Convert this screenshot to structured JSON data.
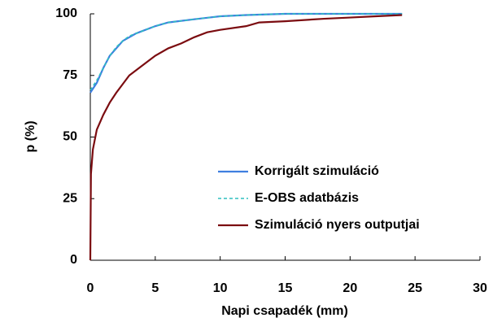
{
  "chart_data": {
    "type": "line",
    "xlabel": "Napi csapadék (mm)",
    "ylabel": "p (%)",
    "xlim": [
      0,
      30
    ],
    "xticks": [
      0,
      5,
      10,
      15,
      20,
      25,
      30
    ],
    "ylim": [
      0,
      100
    ],
    "yticks": [
      0,
      25,
      50,
      75,
      100
    ],
    "grid": false,
    "legend": "lower right",
    "series": [
      {
        "name": "Korrigált szimuláció",
        "color": "#3f7fe0",
        "dashed": false,
        "x": [
          0,
          0.5,
          1,
          1.5,
          2,
          2.5,
          3,
          3.5,
          4,
          5,
          6,
          8,
          10,
          12,
          15,
          20,
          24
        ],
        "values": [
          68,
          72,
          78,
          83,
          86,
          89,
          90.5,
          92,
          93,
          95,
          96.5,
          97.8,
          99,
          99.5,
          100,
          100,
          100
        ]
      },
      {
        "name": "E-OBS adatbázis",
        "color": "#2fbfbf",
        "dashed": true,
        "x": [
          0,
          0.5,
          1,
          1.5,
          2,
          2.5,
          3,
          3.5,
          4,
          5,
          6,
          8,
          10,
          12,
          15,
          20,
          24
        ],
        "values": [
          69,
          73,
          78,
          83,
          86.5,
          89,
          91,
          92,
          93,
          95,
          96.5,
          97.8,
          99,
          99.5,
          100,
          100,
          100
        ]
      },
      {
        "name": "Szimuláció nyers outputjai",
        "color": "#7b0c10",
        "dashed": false,
        "x": [
          0,
          0.05,
          0.2,
          0.5,
          1,
          1.5,
          2,
          2.5,
          3,
          4,
          5,
          6,
          7,
          8,
          9,
          10,
          12,
          13,
          15,
          18,
          20,
          22,
          24
        ],
        "values": [
          0,
          35,
          45,
          53,
          59,
          64,
          68,
          71.5,
          75,
          79,
          83,
          86,
          88,
          90.5,
          92.5,
          93.5,
          95,
          96.5,
          97,
          98,
          98.5,
          99,
          99.5
        ]
      }
    ]
  }
}
